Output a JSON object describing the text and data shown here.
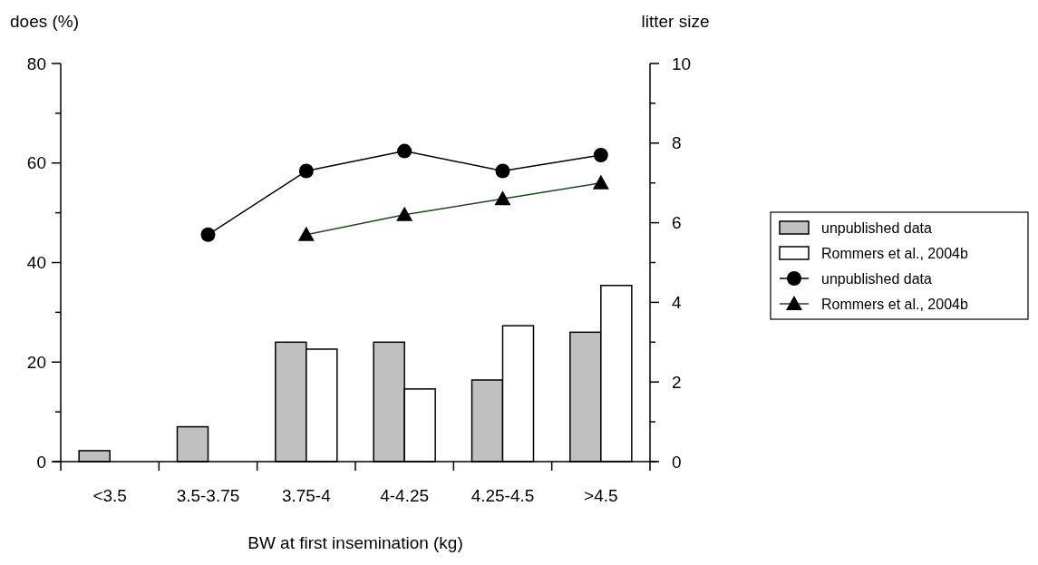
{
  "chart_data": {
    "type": "bar",
    "xlabel": "BW at first insemination (kg)",
    "ylabel": "does (%)",
    "y2label": "litter size",
    "categories": [
      "<3.5",
      "3.5-3.75",
      "3.75-4",
      "4-4.25",
      "4.25-4.5",
      ">4.5"
    ],
    "series": [
      {
        "name": "unpublished data",
        "color": "#c0c0c0",
        "values": [
          2.2,
          7,
          24,
          24,
          16.4,
          26
        ]
      },
      {
        "name": "Rommers et al., 2004b",
        "color": "#ffffff",
        "values": [
          null,
          null,
          22.6,
          14.6,
          27.3,
          35.4
        ]
      },
      {
        "name": "unpublished data",
        "type": "line",
        "axis": "y2",
        "color": "#000000",
        "marker": "circle",
        "values": [
          null,
          5.7,
          7.3,
          7.8,
          7.3,
          7.7
        ]
      },
      {
        "name": "Rommers et al., 2004b",
        "type": "line",
        "axis": "y2",
        "color": "#1a4d1a",
        "marker": "triangle",
        "values": [
          null,
          null,
          5.7,
          6.2,
          6.6,
          7.0
        ]
      }
    ],
    "ylim": [
      0,
      80
    ],
    "yticks": [
      0,
      {
        "value": 10,
        "label": null
      },
      20,
      {
        "value": 30,
        "label": null
      },
      40,
      {
        "value": 50,
        "label": null
      },
      60,
      {
        "value": 70,
        "label": null
      },
      80
    ],
    "y2lim": [
      0,
      10
    ],
    "y2ticks": [
      0,
      {
        "value": 1,
        "label": null
      },
      2,
      {
        "value": 3,
        "label": null
      },
      4,
      {
        "value": 5,
        "label": null
      },
      6,
      {
        "value": 7,
        "label": null
      },
      8,
      {
        "value": 9,
        "label": null
      },
      10
    ],
    "legend": "right",
    "grid": false
  }
}
